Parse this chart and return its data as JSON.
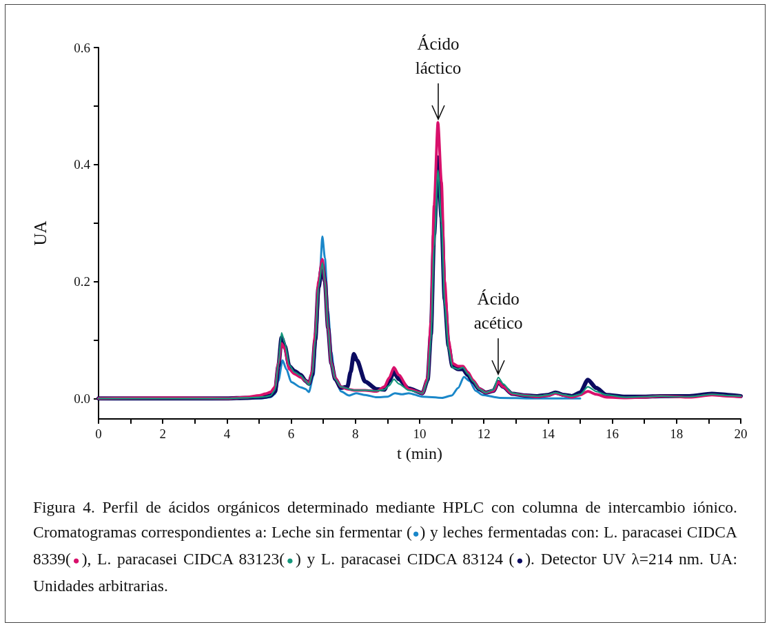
{
  "chart_data": {
    "type": "line",
    "xlabel": "t (min)",
    "ylabel": "UA",
    "xlim": [
      0,
      20
    ],
    "xticks": [
      0,
      {
        "value": 1,
        "label": null
      },
      2,
      {
        "value": 3,
        "label": null
      },
      4,
      {
        "value": 5,
        "label": null
      },
      6,
      {
        "value": 7,
        "label": null
      },
      8,
      {
        "value": 9,
        "label": null
      },
      10,
      {
        "value": 11,
        "label": null
      },
      12,
      {
        "value": 13,
        "label": null
      },
      14,
      {
        "value": 15,
        "label": null
      },
      16,
      {
        "value": 17,
        "label": null
      },
      18,
      {
        "value": 19,
        "label": null
      },
      20
    ],
    "ylim": [
      -0.035,
      0.6
    ],
    "yticks": [
      {
        "value": 0,
        "label": "0.0"
      },
      {
        "value": 0.1,
        "label": null
      },
      0.2,
      {
        "value": 0.3,
        "label": null
      },
      0.4,
      {
        "value": 0.5,
        "label": null
      },
      0.6
    ],
    "grid": false,
    "legend": false,
    "marker": "none",
    "line_style": "solid",
    "series": [
      {
        "color": "#1a87c9",
        "x": [
          4,
          5.0,
          5.36,
          5.5,
          5.6,
          5.73,
          5.85,
          6.0,
          6.3,
          6.45,
          6.55,
          6.7,
          6.8,
          6.9,
          6.97,
          7.05,
          7.15,
          7.25,
          7.37,
          7.55,
          7.8,
          8.02,
          8.3,
          8.66,
          9.0,
          9.23,
          9.45,
          9.66,
          10.09,
          10.7,
          11.0,
          11.2,
          11.38,
          11.55,
          11.75,
          11.95,
          12.5,
          13.5,
          15
        ],
        "values": [
          0,
          0,
          0.002,
          0.008,
          0.03,
          0.065,
          0.05,
          0.028,
          0.019,
          0.016,
          0.011,
          0.04,
          0.12,
          0.22,
          0.277,
          0.24,
          0.15,
          0.08,
          0.033,
          0.012,
          0.005,
          0.009,
          0.006,
          0.002,
          0.003,
          0.009,
          0.007,
          0.009,
          0.003,
          0.001,
          0.005,
          0.018,
          0.037,
          0.03,
          0.013,
          0.006,
          0.001,
          0,
          0
        ]
      },
      {
        "color": "#d8106b",
        "x": [
          0,
          2,
          4,
          4.6,
          5.0,
          5.2,
          5.36,
          5.5,
          5.6,
          5.7,
          5.8,
          5.94,
          6.1,
          6.3,
          6.45,
          6.55,
          6.65,
          6.75,
          6.85,
          6.97,
          7.05,
          7.15,
          7.25,
          7.37,
          7.55,
          7.75,
          7.85,
          7.95,
          8.05,
          8.3,
          8.66,
          8.9,
          9.05,
          9.2,
          9.35,
          9.66,
          10.09,
          10.25,
          10.35,
          10.45,
          10.57,
          10.68,
          10.78,
          10.9,
          11.02,
          11.2,
          11.35,
          11.5,
          11.67,
          11.85,
          12.06,
          12.3,
          12.45,
          12.6,
          12.88,
          13.3,
          13.67,
          14.0,
          14.23,
          14.5,
          14.74,
          15.0,
          15.24,
          15.5,
          15.82,
          16.4,
          17.0,
          17.5,
          18.0,
          18.4,
          19.1,
          19.6,
          20
        ],
        "values": [
          0,
          0.001,
          0,
          0.002,
          0.005,
          0.008,
          0.011,
          0.02,
          0.06,
          0.094,
          0.085,
          0.05,
          0.042,
          0.036,
          0.03,
          0.025,
          0.045,
          0.11,
          0.2,
          0.238,
          0.2,
          0.12,
          0.06,
          0.035,
          0.02,
          0.016,
          0.015,
          0.014,
          0.014,
          0.014,
          0.012,
          0.02,
          0.035,
          0.053,
          0.04,
          0.016,
          0.009,
          0.035,
          0.13,
          0.33,
          0.472,
          0.37,
          0.2,
          0.1,
          0.06,
          0.055,
          0.055,
          0.045,
          0.031,
          0.017,
          0.01,
          0.013,
          0.028,
          0.02,
          0.008,
          0.005,
          0.003,
          0.005,
          0.009,
          0.005,
          0.002,
          0.006,
          0.012,
          0.007,
          0.002,
          0.001,
          0.002,
          0.004,
          0.003,
          0.002,
          0.006,
          0.004,
          0.003
        ]
      },
      {
        "color": "#13977b",
        "x": [
          0,
          2,
          4,
          4.6,
          5.0,
          5.2,
          5.36,
          5.5,
          5.6,
          5.7,
          5.8,
          5.94,
          6.1,
          6.3,
          6.45,
          6.55,
          6.65,
          6.75,
          6.85,
          6.97,
          7.05,
          7.15,
          7.25,
          7.37,
          7.55,
          7.75,
          7.85,
          7.95,
          8.05,
          8.3,
          8.66,
          8.9,
          9.05,
          9.2,
          9.35,
          9.66,
          10.09,
          10.25,
          10.35,
          10.45,
          10.57,
          10.68,
          10.78,
          10.9,
          11.02,
          11.2,
          11.35,
          11.5,
          11.67,
          11.85,
          12.06,
          12.3,
          12.45,
          12.6,
          12.88,
          13.3,
          13.67,
          14.0,
          14.23,
          14.5,
          14.74,
          15.0,
          15.24,
          15.5,
          15.82,
          16.4,
          17.0,
          17.5,
          18.0,
          18.4,
          19.1,
          19.6,
          20
        ],
        "values": [
          0,
          0,
          0,
          0.001,
          0.002,
          0.003,
          0.005,
          0.015,
          0.06,
          0.112,
          0.095,
          0.057,
          0.045,
          0.039,
          0.03,
          0.023,
          0.04,
          0.1,
          0.19,
          0.232,
          0.2,
          0.12,
          0.06,
          0.033,
          0.02,
          0.017,
          0.015,
          0.014,
          0.014,
          0.014,
          0.013,
          0.015,
          0.022,
          0.033,
          0.025,
          0.014,
          0.009,
          0.03,
          0.1,
          0.26,
          0.39,
          0.3,
          0.16,
          0.085,
          0.053,
          0.05,
          0.053,
          0.042,
          0.029,
          0.016,
          0.01,
          0.015,
          0.036,
          0.025,
          0.009,
          0.005,
          0.004,
          0.006,
          0.01,
          0.006,
          0.004,
          0.007,
          0.02,
          0.012,
          0.006,
          0.002,
          0.003,
          0.004,
          0.003,
          0.003,
          0.007,
          0.005,
          0.004
        ]
      },
      {
        "color": "#0b0b60",
        "x": [
          0,
          2,
          4,
          4.6,
          5.0,
          5.2,
          5.36,
          5.5,
          5.6,
          5.7,
          5.8,
          5.94,
          6.1,
          6.3,
          6.45,
          6.55,
          6.65,
          6.75,
          6.85,
          6.97,
          7.05,
          7.15,
          7.25,
          7.37,
          7.55,
          7.75,
          7.85,
          7.95,
          8.05,
          8.3,
          8.66,
          8.9,
          9.05,
          9.2,
          9.35,
          9.66,
          10.09,
          10.25,
          10.35,
          10.45,
          10.57,
          10.68,
          10.78,
          10.9,
          11.02,
          11.2,
          11.35,
          11.5,
          11.67,
          11.85,
          12.06,
          12.3,
          12.45,
          12.6,
          12.88,
          13.3,
          13.67,
          14.0,
          14.23,
          14.5,
          14.74,
          15.0,
          15.24,
          15.5,
          15.82,
          16.4,
          17.0,
          17.5,
          18.0,
          18.4,
          19.1,
          19.6,
          20
        ],
        "values": [
          0,
          0,
          0,
          0.001,
          0.002,
          0.003,
          0.005,
          0.012,
          0.055,
          0.104,
          0.09,
          0.055,
          0.047,
          0.04,
          0.03,
          0.025,
          0.04,
          0.1,
          0.19,
          0.228,
          0.2,
          0.12,
          0.06,
          0.033,
          0.018,
          0.02,
          0.045,
          0.076,
          0.065,
          0.029,
          0.016,
          0.015,
          0.03,
          0.045,
          0.033,
          0.017,
          0.009,
          0.032,
          0.11,
          0.28,
          0.412,
          0.31,
          0.17,
          0.09,
          0.055,
          0.05,
          0.05,
          0.04,
          0.028,
          0.016,
          0.01,
          0.013,
          0.028,
          0.02,
          0.008,
          0.005,
          0.004,
          0.006,
          0.01,
          0.006,
          0.004,
          0.01,
          0.032,
          0.018,
          0.006,
          0.003,
          0.003,
          0.004,
          0.004,
          0.004,
          0.008,
          0.006,
          0.004
        ]
      }
    ],
    "annotations": [
      {
        "text": "Ácido láctico",
        "x": 10.58,
        "y": 0.472
      },
      {
        "text": "Ácido acético",
        "x": 12.45,
        "y": 0.036
      },
      "Figura 4. Perfil de ácidos orgánicos determinado mediante HPLC con columna de intercambio iónico. Cromatogramas correspondientes a: Leche sin fermentar (●) y leches fermentadas con: L. paracasei CIDCA 8339(●), L. paracasei CIDCA 83123(●) y L. paracasei CIDCA 83124 (●). Detector UV λ=214 nm. UA: Unidades arbitrarias."
    ]
  }
}
